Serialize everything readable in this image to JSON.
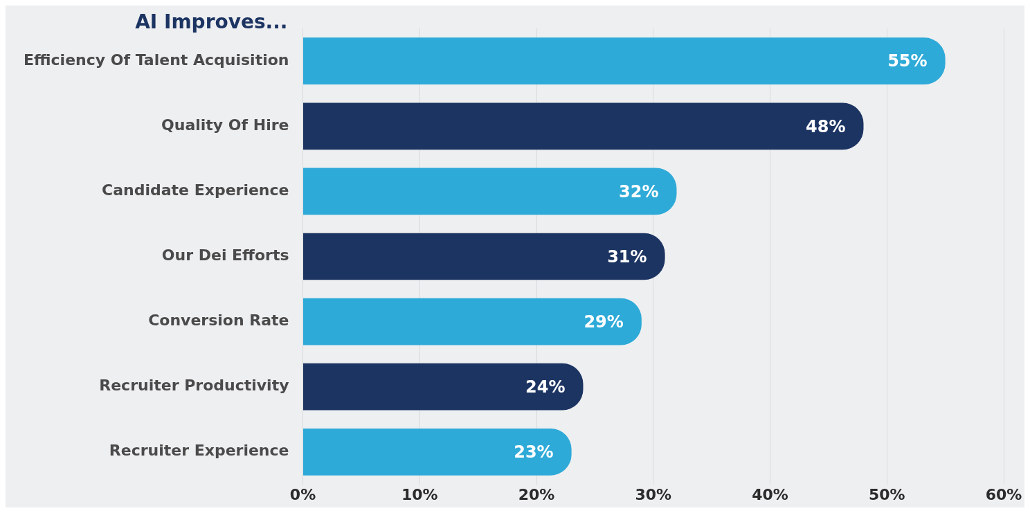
{
  "chart_data": {
    "type": "bar",
    "orientation": "horizontal",
    "title": "AI Improves...",
    "categories": [
      "Efficiency Of Talent Acquisition",
      "Quality Of Hire",
      "Candidate Experience",
      "Our Dei Efforts",
      "Conversion Rate",
      "Recruiter Productivity",
      "Recruiter Experience"
    ],
    "values": [
      55,
      48,
      32,
      31,
      29,
      24,
      23
    ],
    "colors": [
      "#2eaad8",
      "#1c3462",
      "#2eaad8",
      "#1c3462",
      "#2eaad8",
      "#1c3462",
      "#2eaad8"
    ],
    "value_labels": [
      "55%",
      "48%",
      "32%",
      "31%",
      "29%",
      "24%",
      "23%"
    ],
    "xlim": [
      0,
      60
    ],
    "xticks": [
      {
        "value": 0,
        "label": "0%"
      },
      {
        "value": 10,
        "label": "10%"
      },
      {
        "value": 20,
        "label": "20%"
      },
      {
        "value": 30,
        "label": "30%"
      },
      {
        "value": 40,
        "label": "40%"
      },
      {
        "value": 50,
        "label": "50%"
      },
      {
        "value": 60,
        "label": "60%"
      }
    ],
    "grid": "x",
    "legend": false
  }
}
